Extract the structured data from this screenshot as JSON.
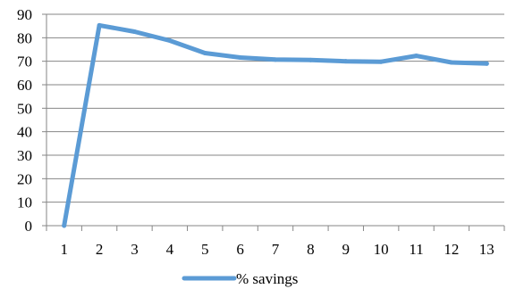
{
  "chart_data": {
    "type": "line",
    "title": "",
    "xlabel": "",
    "ylabel": "",
    "categories": [
      "1",
      "2",
      "3",
      "4",
      "5",
      "6",
      "7",
      "8",
      "9",
      "10",
      "11",
      "12",
      "13"
    ],
    "series": [
      {
        "name": "% savings",
        "values": [
          0,
          85.3,
          82.6,
          78.8,
          73.5,
          71.6,
          70.7,
          70.5,
          70.0,
          69.8,
          72.3,
          69.5,
          69.0
        ],
        "color": "#5b9bd5"
      }
    ],
    "ylim": [
      0,
      90
    ],
    "yticks": [
      0,
      10,
      20,
      30,
      40,
      50,
      60,
      70,
      80,
      90
    ],
    "grid": "horizontal",
    "legend": "bottom"
  }
}
